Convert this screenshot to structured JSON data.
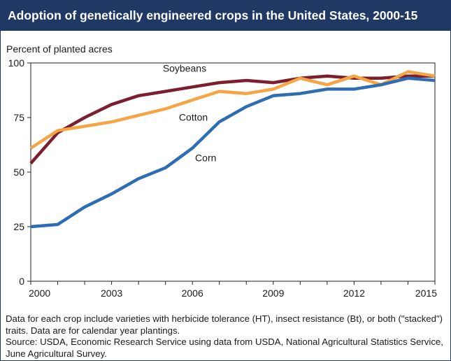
{
  "chart_data": {
    "type": "line",
    "title": "Adoption of genetically engineered crops in the United States, 2000-15",
    "ylabel": "Percent of planted acres",
    "xlabel": "",
    "xlim": [
      2000,
      2015
    ],
    "ylim": [
      0,
      100
    ],
    "xticks": [
      2000,
      2003,
      2006,
      2009,
      2012,
      2015
    ],
    "yticks": [
      0,
      25,
      50,
      75,
      100
    ],
    "grid": false,
    "x": [
      2000,
      2001,
      2002,
      2003,
      2004,
      2005,
      2006,
      2007,
      2008,
      2009,
      2010,
      2011,
      2012,
      2013,
      2014,
      2015
    ],
    "series": [
      {
        "name": "Soybeans",
        "color": "#7b1f2e",
        "values": [
          54,
          68,
          75,
          81,
          85,
          87,
          89,
          91,
          92,
          91,
          93,
          94,
          93,
          93,
          94,
          94
        ]
      },
      {
        "name": "Cotton",
        "color": "#f6a545",
        "values": [
          61,
          69,
          71,
          73,
          76,
          79,
          83,
          87,
          86,
          88,
          93,
          90,
          94,
          90,
          96,
          94
        ]
      },
      {
        "name": "Corn",
        "color": "#2e6db3",
        "values": [
          25,
          26,
          34,
          40,
          47,
          52,
          61,
          73,
          80,
          85,
          86,
          88,
          88,
          90,
          93,
          92
        ]
      }
    ]
  },
  "notes": {
    "line1": "Data for each crop include varieties with herbicide tolerance (HT), insect resistance (Bt), or both (\"stacked\")",
    "line2": "traits. Data are for calendar year plantings.",
    "line3": "Source: USDA, Economic Research Service using data from USDA, National Agricultural Statistics Service,",
    "line4": "June Agricultural Survey."
  }
}
